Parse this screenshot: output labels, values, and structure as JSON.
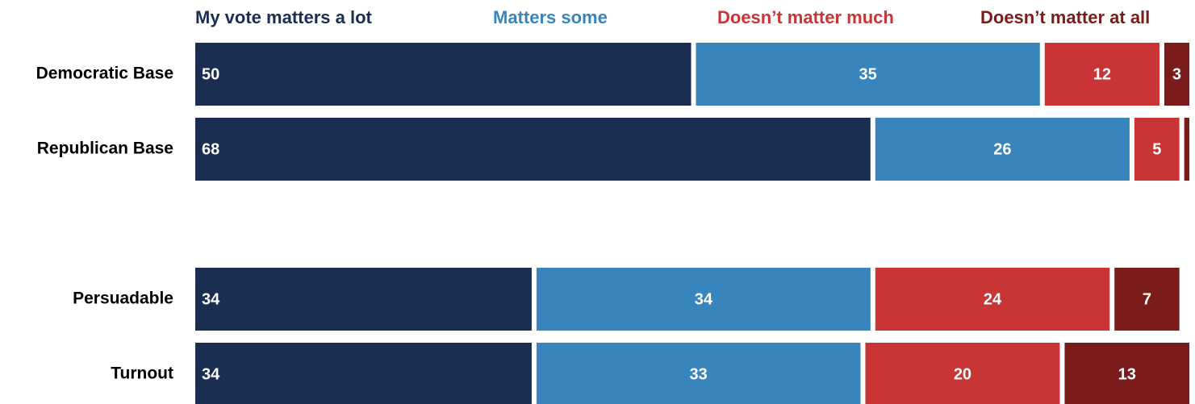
{
  "chart_data": {
    "type": "stacked_bar_horizontal",
    "categories": [
      "Democratic Base",
      "Republican Base",
      null,
      "Persuadable",
      "Turnout"
    ],
    "series": [
      {
        "name": "My vote matters a lot",
        "color": "#1b2e52",
        "values": [
          50,
          68,
          null,
          34,
          34
        ]
      },
      {
        "name": "Matters some",
        "color": "#3884bd",
        "values": [
          35,
          26,
          null,
          34,
          33
        ]
      },
      {
        "name": "Doesn’t matter much",
        "color": "#c93535",
        "values": [
          12,
          5,
          null,
          24,
          20
        ]
      },
      {
        "name": "Doesn’t matter at all",
        "color": "#7b1c1a",
        "values": [
          3,
          1,
          null,
          7,
          13
        ],
        "value_labels": [
          "3",
          null,
          null,
          "7",
          "13"
        ]
      }
    ],
    "xlim": [
      0,
      100
    ]
  }
}
